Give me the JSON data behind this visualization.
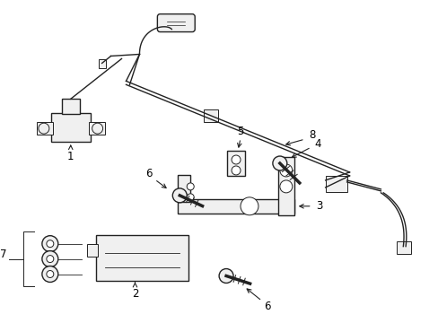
{
  "background_color": "#ffffff",
  "line_color": "#222222",
  "text_color": "#000000",
  "figsize": [
    4.89,
    3.6
  ],
  "dpi": 100
}
